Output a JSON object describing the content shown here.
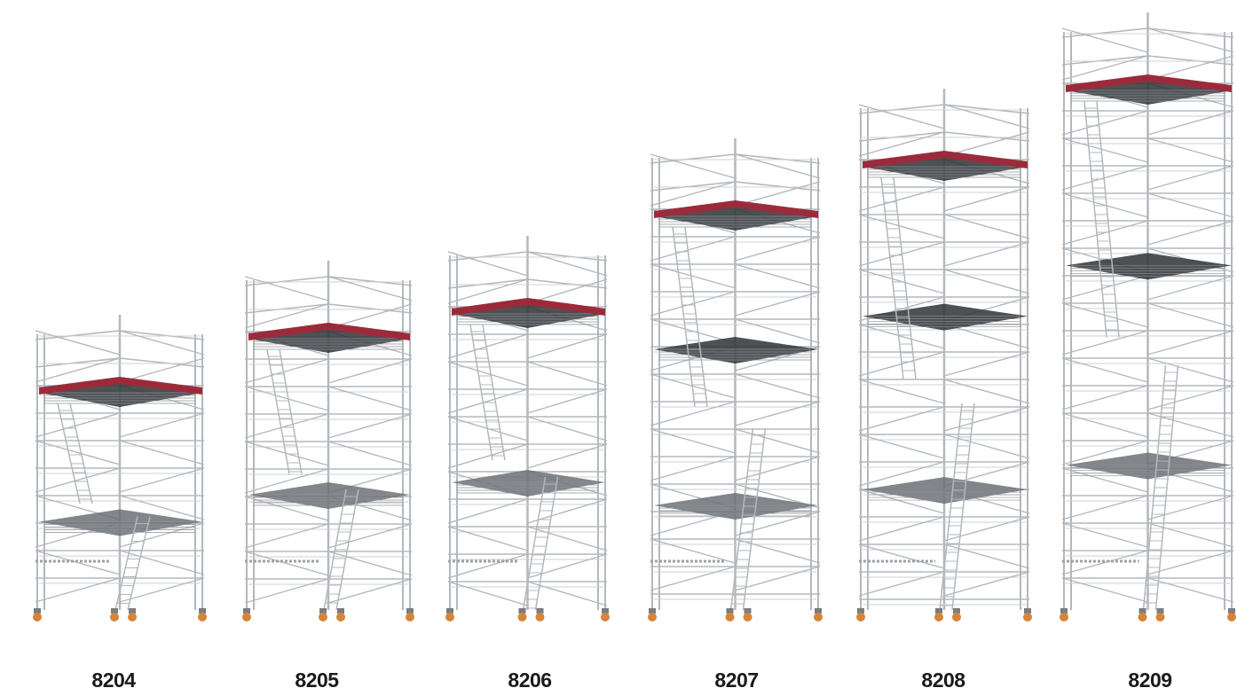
{
  "items": [
    {
      "label": "8204"
    },
    {
      "label": "8205"
    },
    {
      "label": "8206"
    },
    {
      "label": "8207"
    },
    {
      "label": "8208"
    },
    {
      "label": "8209"
    }
  ]
}
